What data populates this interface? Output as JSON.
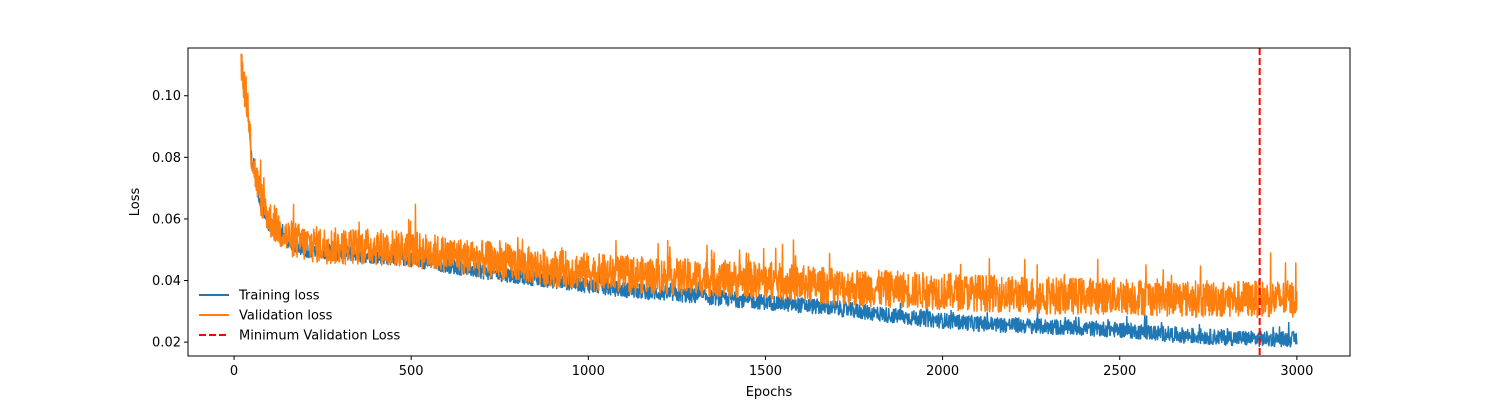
{
  "chart_data": {
    "type": "line",
    "title": "",
    "xlabel": "Epochs",
    "ylabel": "Loss",
    "xlim": [
      -130,
      3150
    ],
    "ylim": [
      0.0155,
      0.1155
    ],
    "x_ticks": [
      0,
      500,
      1000,
      1500,
      2000,
      2500,
      3000
    ],
    "x_tick_labels": [
      "0",
      "500",
      "1000",
      "1500",
      "2000",
      "2500",
      "3000"
    ],
    "y_ticks": [
      0.02,
      0.04,
      0.06,
      0.08,
      0.1
    ],
    "y_tick_labels": [
      "0.02",
      "0.04",
      "0.06",
      "0.08",
      "0.10"
    ],
    "grid": false,
    "legend_position": "lower-left",
    "x_range": [
      20,
      3000
    ],
    "series": [
      {
        "name": "Training loss",
        "color": "#1f77b4",
        "style": "solid",
        "noise_amplitude": 0.0025,
        "anchors": [
          [
            20,
            0.11
          ],
          [
            35,
            0.098
          ],
          [
            50,
            0.08
          ],
          [
            75,
            0.065
          ],
          [
            100,
            0.058
          ],
          [
            150,
            0.053
          ],
          [
            200,
            0.05
          ],
          [
            300,
            0.049
          ],
          [
            400,
            0.048
          ],
          [
            500,
            0.047
          ],
          [
            700,
            0.043
          ],
          [
            900,
            0.04
          ],
          [
            1100,
            0.037
          ],
          [
            1300,
            0.035
          ],
          [
            1500,
            0.033
          ],
          [
            1700,
            0.031
          ],
          [
            1900,
            0.028
          ],
          [
            2100,
            0.026
          ],
          [
            2300,
            0.025
          ],
          [
            2500,
            0.024
          ],
          [
            2700,
            0.022
          ],
          [
            2900,
            0.021
          ],
          [
            3000,
            0.021
          ]
        ]
      },
      {
        "name": "Validation loss",
        "color": "#ff7f0e",
        "style": "solid",
        "noise_amplitude": 0.006,
        "anchors": [
          [
            20,
            0.111
          ],
          [
            35,
            0.098
          ],
          [
            50,
            0.08
          ],
          [
            75,
            0.067
          ],
          [
            100,
            0.06
          ],
          [
            150,
            0.054
          ],
          [
            200,
            0.052
          ],
          [
            300,
            0.051
          ],
          [
            400,
            0.051
          ],
          [
            500,
            0.05
          ],
          [
            700,
            0.047
          ],
          [
            900,
            0.044
          ],
          [
            1100,
            0.042
          ],
          [
            1300,
            0.041
          ],
          [
            1500,
            0.04
          ],
          [
            1700,
            0.038
          ],
          [
            1900,
            0.037
          ],
          [
            2100,
            0.036
          ],
          [
            2300,
            0.035
          ],
          [
            2500,
            0.035
          ],
          [
            2700,
            0.034
          ],
          [
            2900,
            0.034
          ],
          [
            3000,
            0.034
          ]
        ]
      },
      {
        "name": "Minimum Validation Loss",
        "color": "#ff0000",
        "style": "dashed",
        "vline_x": 2895
      }
    ]
  }
}
